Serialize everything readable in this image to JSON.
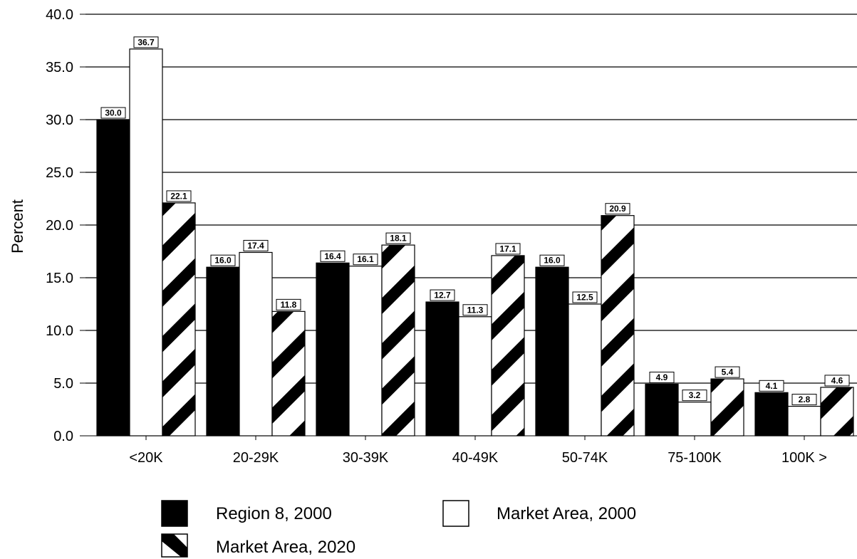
{
  "chart_data": {
    "type": "bar",
    "title": "",
    "xlabel": "",
    "ylabel": "Percent",
    "ylim": [
      0,
      40
    ],
    "yticks": [
      "0.0",
      "5.0",
      "10.0",
      "15.0",
      "20.0",
      "25.0",
      "30.0",
      "35.0",
      "40.0"
    ],
    "categories": [
      "<20K",
      "20-29K",
      "30-39K",
      "40-49K",
      "50-74K",
      "75-100K",
      "100K >"
    ],
    "series": [
      {
        "name": "Region 8, 2000",
        "pattern": "solid-black",
        "values": [
          30.0,
          16.0,
          16.4,
          12.7,
          16.0,
          4.9,
          4.1
        ],
        "labels": [
          "30.0",
          "16.0",
          "16.4",
          "12.7",
          "16.0",
          "4.9",
          "4.1"
        ]
      },
      {
        "name": "Market Area, 2000",
        "pattern": "white",
        "values": [
          36.7,
          17.4,
          16.1,
          11.3,
          12.5,
          3.2,
          2.8
        ],
        "labels": [
          "36.7",
          "17.4",
          "16.1",
          "11.3",
          "12.5",
          "3.2",
          "2.8"
        ]
      },
      {
        "name": "Market Area, 2020",
        "pattern": "diagonal-stripes",
        "values": [
          22.1,
          11.8,
          18.1,
          17.1,
          20.9,
          5.4,
          4.6
        ],
        "labels": [
          "22.1",
          "11.8",
          "18.1",
          "17.1",
          "20.9",
          "5.4",
          "4.6"
        ]
      }
    ],
    "grid": true,
    "legend_position": "bottom",
    "colors": {
      "bar_fill": "#000000",
      "bar_outline": "#000000",
      "background": "#ffffff"
    }
  }
}
